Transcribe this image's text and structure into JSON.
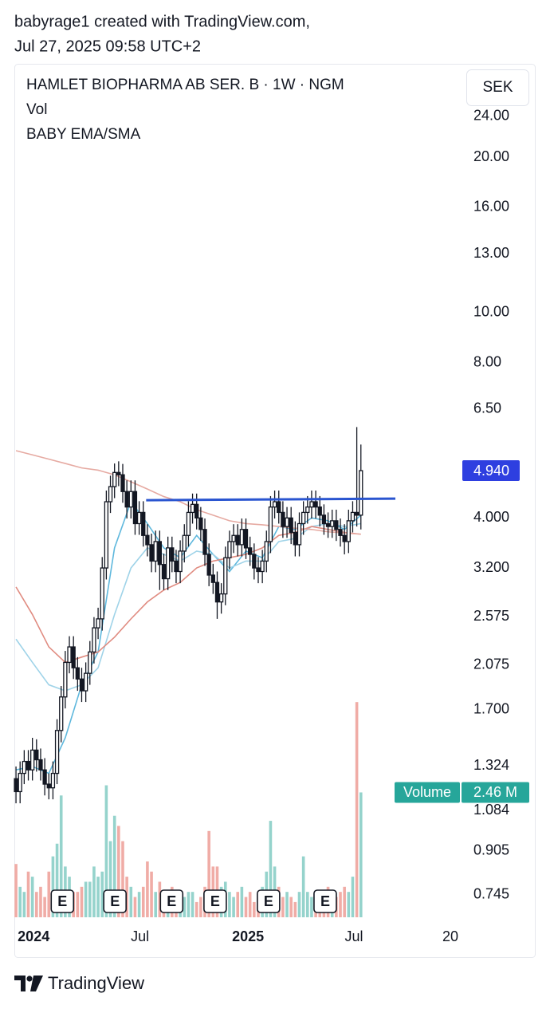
{
  "header": {
    "line1": "babyrage1 created with TradingView.com,",
    "line2": "Jul 27, 2025 09:58 UTC+2"
  },
  "footer": "TradingView",
  "chart_data": {
    "type": "candlestick",
    "title": "HAMLET BIOPHARMA AB SER. B · 1W · NGM",
    "indicator_labels": [
      "Vol",
      "BABY EMA/SMA"
    ],
    "currency": "SEK",
    "x": [
      0,
      1,
      2,
      3,
      4,
      5,
      6,
      7,
      8,
      9,
      10,
      11,
      12,
      13,
      14,
      15,
      16,
      17,
      18,
      19,
      20,
      21,
      22,
      23,
      24,
      25,
      26,
      27,
      28,
      29,
      30,
      31,
      32,
      33,
      34,
      35,
      36,
      37,
      38,
      39,
      40,
      41,
      42,
      43,
      44,
      45,
      46,
      47,
      48,
      49,
      50,
      51,
      52,
      53,
      54,
      55,
      56,
      57,
      58,
      59,
      60,
      61,
      62,
      63,
      64,
      65,
      66,
      67,
      68,
      69,
      70,
      71,
      72,
      73,
      74,
      75,
      76,
      77,
      78,
      79,
      80,
      81,
      82,
      83,
      84
    ],
    "open": [
      1.25,
      1.18,
      1.28,
      1.35,
      1.3,
      1.42,
      1.36,
      1.3,
      1.22,
      1.2,
      1.28,
      1.55,
      1.8,
      2.1,
      2.25,
      2.05,
      1.95,
      1.85,
      2.0,
      2.2,
      2.45,
      2.55,
      3.2,
      4.3,
      4.6,
      4.9,
      4.85,
      4.5,
      4.2,
      4.5,
      3.9,
      4.1,
      3.7,
      3.55,
      3.3,
      3.6,
      3.25,
      3.05,
      3.5,
      3.3,
      3.15,
      3.45,
      3.7,
      4.1,
      4.25,
      4.0,
      3.8,
      3.4,
      3.1,
      3.0,
      2.75,
      2.85,
      3.35,
      3.6,
      3.7,
      3.55,
      3.8,
      3.5,
      3.4,
      3.2,
      3.15,
      3.3,
      3.6,
      4.2,
      4.3,
      4.1,
      3.85,
      4.0,
      3.75,
      3.55,
      3.9,
      4.1,
      4.2,
      4.3,
      4.2,
      4.05,
      3.9,
      3.85,
      3.95,
      3.8,
      3.7,
      3.6,
      3.95,
      4.1,
      4.05
    ],
    "high": [
      1.32,
      1.35,
      1.42,
      1.42,
      1.5,
      1.49,
      1.43,
      1.37,
      1.28,
      1.35,
      1.63,
      1.89,
      2.21,
      2.36,
      2.36,
      2.15,
      2.05,
      2.1,
      2.31,
      2.57,
      2.68,
      3.36,
      4.52,
      4.83,
      5.1,
      5.15,
      5.09,
      4.73,
      4.73,
      4.73,
      4.31,
      4.31,
      3.89,
      3.73,
      3.78,
      3.78,
      3.41,
      3.68,
      3.68,
      3.47,
      3.62,
      3.89,
      4.31,
      4.46,
      4.46,
      4.2,
      3.99,
      3.57,
      3.26,
      3.15,
      2.99,
      3.52,
      3.78,
      3.89,
      3.89,
      3.99,
      3.99,
      3.68,
      3.57,
      3.36,
      3.47,
      3.78,
      4.41,
      4.52,
      4.52,
      4.31,
      4.2,
      4.2,
      3.94,
      4.1,
      4.31,
      4.41,
      4.52,
      4.52,
      4.41,
      4.25,
      4.1,
      4.15,
      4.15,
      3.99,
      3.89,
      4.15,
      4.31,
      6.0,
      5.55
    ],
    "low": [
      1.12,
      1.12,
      1.22,
      1.24,
      1.24,
      1.29,
      1.24,
      1.16,
      1.14,
      1.14,
      1.22,
      1.47,
      1.71,
      2.0,
      1.95,
      1.85,
      1.76,
      1.76,
      1.9,
      2.09,
      2.33,
      2.42,
      3.04,
      4.09,
      4.37,
      4.61,
      4.28,
      3.99,
      3.99,
      3.71,
      3.71,
      3.52,
      3.37,
      3.14,
      3.14,
      2.9,
      2.9,
      2.9,
      3.14,
      2.99,
      2.99,
      3.28,
      3.52,
      3.9,
      3.8,
      3.61,
      3.23,
      2.95,
      2.85,
      2.55,
      2.61,
      2.71,
      3.18,
      3.42,
      3.37,
      3.37,
      3.33,
      3.23,
      3.04,
      2.99,
      2.99,
      3.14,
      3.42,
      3.99,
      3.9,
      3.66,
      3.66,
      3.56,
      3.37,
      3.37,
      3.71,
      3.9,
      3.99,
      3.99,
      3.85,
      3.71,
      3.66,
      3.66,
      3.61,
      3.52,
      3.4,
      3.42,
      3.75,
      3.85,
      3.8
    ],
    "close": [
      1.18,
      1.28,
      1.35,
      1.3,
      1.42,
      1.36,
      1.3,
      1.22,
      1.2,
      1.28,
      1.55,
      1.8,
      2.1,
      2.25,
      2.05,
      1.95,
      1.85,
      2.0,
      2.2,
      2.45,
      2.55,
      3.2,
      4.3,
      4.6,
      4.9,
      4.85,
      4.5,
      4.2,
      4.5,
      3.9,
      4.1,
      3.7,
      3.55,
      3.3,
      3.6,
      3.25,
      3.05,
      3.5,
      3.3,
      3.15,
      3.45,
      3.7,
      4.1,
      4.25,
      4.0,
      3.8,
      3.4,
      3.1,
      3.0,
      2.75,
      2.85,
      3.35,
      3.6,
      3.7,
      3.55,
      3.8,
      3.5,
      3.4,
      3.2,
      3.15,
      3.3,
      3.6,
      4.2,
      4.3,
      4.1,
      3.85,
      4.0,
      3.75,
      3.55,
      3.9,
      4.1,
      4.2,
      4.3,
      4.2,
      4.05,
      3.9,
      3.85,
      3.95,
      3.8,
      3.7,
      3.6,
      3.95,
      4.1,
      4.05,
      4.94
    ],
    "last_label": "4.940",
    "last_color": "#2e3fe0",
    "up_color": "#ffffff",
    "down_color": "#131722",
    "outline_color": "#131722",
    "log_scale": true,
    "grid": false,
    "ylim": [
      0.65,
      29.8
    ],
    "yticks": [
      {
        "value": 24,
        "label": "24.00"
      },
      {
        "value": 20,
        "label": "20.00"
      },
      {
        "value": 16,
        "label": "16.00"
      },
      {
        "value": 13,
        "label": "13.00"
      },
      {
        "value": 10,
        "label": "10.00"
      },
      {
        "value": 8,
        "label": "8.00"
      },
      {
        "value": 6.5,
        "label": "6.50"
      },
      {
        "value": 4,
        "label": "4.000"
      },
      {
        "value": 3.2,
        "label": "3.200"
      },
      2.575,
      2.075,
      {
        "value": 1.7,
        "label": "1.700"
      },
      1.324,
      1.084,
      0.905,
      0.745
    ],
    "xlim": [
      -0.4,
      108.7
    ],
    "xticks": [
      {
        "value": 4.3,
        "label": "2024"
      },
      {
        "value": 30.2,
        "label": "Jul"
      },
      {
        "value": 56.5,
        "label": "2025"
      },
      {
        "value": 82.3,
        "label": "Jul"
      },
      {
        "value": 105.8,
        "label": "20"
      }
    ],
    "volume": {
      "name": "Volume",
      "values": [
        1.05,
        0.6,
        0.5,
        0.9,
        0.8,
        0.5,
        0.6,
        0.4,
        0.9,
        1.2,
        1.45,
        2.4,
        1.0,
        0.8,
        0.5,
        0.5,
        0.6,
        0.7,
        0.7,
        1.0,
        0.8,
        0.9,
        2.6,
        1.5,
        2.0,
        1.8,
        1.5,
        0.8,
        0.6,
        0.4,
        0.5,
        0.6,
        1.1,
        0.9,
        0.5,
        0.7,
        0.4,
        0.5,
        0.6,
        0.4,
        0.5,
        0.4,
        0.5,
        0.5,
        0.3,
        0.4,
        0.6,
        1.7,
        1.0,
        1.0,
        0.6,
        0.7,
        0.5,
        0.4,
        0.5,
        0.6,
        0.4,
        0.5,
        0.3,
        0.4,
        0.6,
        0.9,
        1.9,
        1.0,
        0.6,
        0.4,
        0.5,
        0.4,
        0.3,
        0.5,
        1.2,
        0.5,
        0.4,
        0.5,
        0.3,
        0.4,
        0.6,
        0.3,
        0.4,
        0.5,
        0.6,
        0.5,
        0.8,
        4.24,
        2.46
      ],
      "last_label": "2.46 M",
      "ylim": [
        0,
        4.4
      ],
      "up_color": "#95d3cc",
      "down_color": "#f0aca6",
      "label_color": "#26a69a"
    },
    "lines": [
      {
        "x": [
          0,
          4,
          8,
          12,
          16,
          20,
          24,
          28,
          32,
          36,
          40,
          44,
          48,
          52,
          56,
          60,
          64,
          68,
          72,
          76,
          80,
          84
        ],
        "values": [
          1.3,
          1.32,
          1.28,
          1.5,
          1.9,
          2.2,
          3.5,
          4.3,
          3.9,
          3.5,
          3.35,
          3.7,
          3.4,
          3.15,
          3.45,
          3.35,
          3.85,
          3.8,
          4.0,
          3.95,
          3.8,
          4.05
        ],
        "color": "#5fb8dd"
      },
      {
        "x": [
          0,
          4,
          8,
          12,
          16,
          20,
          24,
          28,
          32,
          36,
          40,
          44,
          48,
          52,
          56,
          60,
          64,
          68,
          72,
          76,
          80,
          84
        ],
        "values": [
          2.33,
          2.1,
          1.9,
          1.85,
          1.9,
          2.05,
          2.6,
          3.2,
          3.5,
          3.4,
          3.3,
          3.45,
          3.4,
          3.2,
          3.3,
          3.3,
          3.6,
          3.65,
          3.85,
          3.9,
          3.85,
          3.9
        ],
        "color": "#9fd3e8"
      },
      {
        "x": [
          0,
          4,
          8,
          12,
          16,
          20,
          24,
          28,
          32,
          36,
          40,
          44,
          48,
          52,
          56,
          60,
          64,
          68,
          72,
          76,
          80,
          84
        ],
        "values": [
          2.94,
          2.6,
          2.25,
          2.1,
          2.15,
          2.2,
          2.35,
          2.55,
          2.75,
          2.9,
          3.0,
          3.2,
          3.3,
          3.35,
          3.4,
          3.5,
          3.7,
          3.75,
          3.85,
          3.8,
          3.75,
          3.72
        ],
        "color": "#e08b80"
      },
      {
        "x": [
          0,
          4,
          8,
          12,
          16,
          20,
          24,
          28,
          32,
          36,
          40,
          44,
          48,
          52,
          56,
          60,
          64,
          68,
          72,
          76,
          80,
          84
        ],
        "values": [
          5.4,
          5.3,
          5.2,
          5.1,
          5.0,
          4.95,
          4.85,
          4.7,
          4.55,
          4.4,
          4.3,
          4.15,
          4.05,
          3.95,
          3.9,
          3.88,
          3.85,
          3.82,
          3.8,
          3.76,
          3.74,
          3.72
        ],
        "color": "#e6aaa2"
      }
    ],
    "trend_line": {
      "x": [
        31.7,
        92.4
      ],
      "values": [
        4.33,
        4.36
      ],
      "color": "#2a55d0"
    },
    "earnings": {
      "x": [
        11.3,
        24.1,
        37.9,
        48.5,
        61.5,
        75.3
      ],
      "label": "E"
    }
  }
}
